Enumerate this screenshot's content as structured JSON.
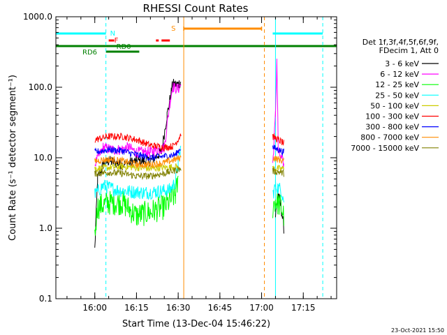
{
  "chart_data": {
    "type": "line",
    "title": "RHESSI Count Rates",
    "xlabel": "Start Time (13-Dec-04 15:46:22)",
    "ylabel": "Count Rate (s⁻¹ detector segment⁻¹)",
    "yscale": "log",
    "ylim": [
      0.1,
      1000
    ],
    "xlim": [
      "15:46",
      "17:27"
    ],
    "x_ticks": [
      "16:00",
      "16:15",
      "16:30",
      "16:45",
      "17:00",
      "17:15"
    ],
    "y_ticks": [
      "0.1",
      "1.0",
      "10.0",
      "100.0",
      "1000.0"
    ],
    "legend_header": [
      "Det 1f,3f,4f,5f,6f,9f,",
      "FDecim 1, Att 0"
    ],
    "legend_position": "right",
    "timestamp": "23-Oct-2021 15:50",
    "flags": {
      "N": {
        "label": "N",
        "segments": [
          [
            "15:46",
            "16:04"
          ],
          [
            "17:04",
            "17:22"
          ]
        ],
        "color": "#00ffff"
      },
      "S": {
        "label": "S",
        "segments": [
          [
            "16:32",
            "17:00"
          ]
        ],
        "color": "#ff8c00"
      },
      "F": {
        "label": "F",
        "segments": [
          [
            "16:05",
            "16:07"
          ],
          [
            "16:22",
            "16:23"
          ],
          [
            "16:24",
            "16:27"
          ]
        ],
        "color": "#ff0000"
      },
      "RD0": {
        "label": "RD0",
        "segments": [
          [
            "15:46",
            "17:27"
          ]
        ],
        "color": "#008000"
      },
      "RD6": {
        "label": "RD6",
        "segments": [
          [
            "16:04",
            "16:16"
          ]
        ],
        "color": "#008000"
      }
    },
    "vlines": [
      {
        "t": "15:46",
        "color": "#00ffff",
        "dash": false
      },
      {
        "t": "16:04",
        "color": "#00ffff",
        "dash": true
      },
      {
        "t": "16:32",
        "color": "#ff8c00",
        "dash": false
      },
      {
        "t": "17:01",
        "color": "#ff8c00",
        "dash": true
      },
      {
        "t": "17:05",
        "color": "#00ffff",
        "dash": false
      },
      {
        "t": "17:22",
        "color": "#00ffff",
        "dash": true
      }
    ],
    "series": [
      {
        "name": "3 - 6 keV",
        "color": "#000000",
        "noise": 0.08,
        "points": [
          [
            "16:00",
            0.5
          ],
          [
            "16:01",
            5
          ],
          [
            "16:03",
            8
          ],
          [
            "16:05",
            9
          ],
          [
            "16:10",
            8
          ],
          [
            "16:15",
            9
          ],
          [
            "16:20",
            9
          ],
          [
            "16:24",
            12
          ],
          [
            "16:26",
            40
          ],
          [
            "16:28",
            110
          ],
          [
            "16:30",
            110
          ],
          [
            "16:31",
            120
          ],
          [
            "17:05",
            1.5
          ],
          [
            "17:06",
            3
          ],
          [
            "17:07",
            2
          ],
          [
            "17:08",
            1
          ]
        ]
      },
      {
        "name": "6 - 12 keV",
        "color": "#ff00ff",
        "noise": 0.08,
        "points": [
          [
            "16:00",
            8
          ],
          [
            "16:03",
            14
          ],
          [
            "16:06",
            13
          ],
          [
            "16:09",
            13
          ],
          [
            "16:12",
            14
          ],
          [
            "16:15",
            12
          ],
          [
            "16:20",
            12
          ],
          [
            "16:25",
            14
          ],
          [
            "16:27",
            60
          ],
          [
            "16:28",
            100
          ],
          [
            "16:30",
            95
          ],
          [
            "16:31",
            110
          ],
          [
            "17:04",
            8
          ],
          [
            "17:05",
            40
          ],
          [
            "17:05.5",
            250
          ],
          [
            "17:06",
            12
          ],
          [
            "17:08",
            8
          ]
        ]
      },
      {
        "name": "12 - 25 keV",
        "color": "#00ff00",
        "noise": 0.18,
        "points": [
          [
            "16:00",
            0.8
          ],
          [
            "16:01",
            2
          ],
          [
            "16:05",
            2.3
          ],
          [
            "16:10",
            2.3
          ],
          [
            "16:15",
            1.5
          ],
          [
            "16:20",
            1.7
          ],
          [
            "16:25",
            2
          ],
          [
            "16:29",
            3
          ],
          [
            "16:30",
            4.5
          ],
          [
            "17:04",
            2
          ],
          [
            "17:05",
            2.5
          ],
          [
            "17:07",
            2
          ],
          [
            "17:08",
            1.5
          ]
        ]
      },
      {
        "name": "25 - 50 keV",
        "color": "#00ffff",
        "noise": 0.1,
        "points": [
          [
            "16:00",
            3
          ],
          [
            "16:03",
            4
          ],
          [
            "16:08",
            3.5
          ],
          [
            "16:13",
            3.3
          ],
          [
            "16:18",
            3.2
          ],
          [
            "16:22",
            3.3
          ],
          [
            "16:27",
            3.5
          ],
          [
            "16:29",
            4.5
          ],
          [
            "16:30",
            8
          ],
          [
            "16:31",
            15
          ],
          [
            "17:04",
            3
          ],
          [
            "17:05",
            4
          ],
          [
            "17:07",
            3.5
          ],
          [
            "17:08",
            2.5
          ]
        ]
      },
      {
        "name": "50 - 100 keV",
        "color": "#cccc00",
        "noise": 0.05,
        "points": [
          [
            "16:00",
            7
          ],
          [
            "16:10",
            7.5
          ],
          [
            "16:20",
            7
          ],
          [
            "16:30",
            7.5
          ],
          [
            "17:04",
            7
          ],
          [
            "17:08",
            7
          ]
        ]
      },
      {
        "name": "100 - 300 keV",
        "color": "#ff0000",
        "noise": 0.05,
        "points": [
          [
            "16:00",
            18
          ],
          [
            "16:05",
            20
          ],
          [
            "16:10",
            20
          ],
          [
            "16:15",
            18
          ],
          [
            "16:20",
            15
          ],
          [
            "16:25",
            14
          ],
          [
            "16:28",
            14.5
          ],
          [
            "16:30",
            18
          ],
          [
            "16:31",
            22
          ],
          [
            "17:04",
            20
          ],
          [
            "17:06",
            18
          ],
          [
            "17:08",
            16
          ]
        ]
      },
      {
        "name": "300 - 800 keV",
        "color": "#0000ff",
        "noise": 0.05,
        "points": [
          [
            "16:00",
            12
          ],
          [
            "16:05",
            13
          ],
          [
            "16:10",
            12.5
          ],
          [
            "16:15",
            11
          ],
          [
            "16:20",
            10
          ],
          [
            "16:25",
            10.5
          ],
          [
            "16:29",
            11
          ],
          [
            "16:31",
            14
          ],
          [
            "17:04",
            14
          ],
          [
            "17:06",
            13
          ],
          [
            "17:08",
            12
          ]
        ]
      },
      {
        "name": "800 - 7000 keV",
        "color": "#ff8c00",
        "noise": 0.05,
        "points": [
          [
            "16:00",
            9
          ],
          [
            "16:05",
            9.5
          ],
          [
            "16:10",
            9
          ],
          [
            "16:15",
            8
          ],
          [
            "16:20",
            8
          ],
          [
            "16:25",
            8.5
          ],
          [
            "16:31",
            10
          ],
          [
            "17:04",
            10
          ],
          [
            "17:06",
            9.5
          ],
          [
            "17:08",
            9
          ]
        ]
      },
      {
        "name": "7000 - 15000 keV",
        "color": "#808000",
        "noise": 0.05,
        "points": [
          [
            "16:00",
            6
          ],
          [
            "16:05",
            6.2
          ],
          [
            "16:10",
            6
          ],
          [
            "16:15",
            5.5
          ],
          [
            "16:20",
            5.5
          ],
          [
            "16:25",
            6
          ],
          [
            "16:31",
            7
          ],
          [
            "17:04",
            6.5
          ],
          [
            "17:06",
            6.3
          ],
          [
            "17:08",
            6
          ]
        ]
      }
    ]
  }
}
